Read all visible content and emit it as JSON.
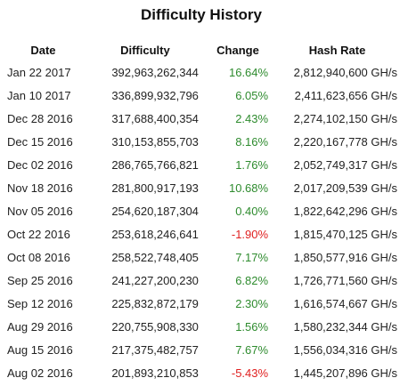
{
  "title": "Difficulty History",
  "colors": {
    "positive": "#2e8b2e",
    "negative": "#e02020"
  },
  "columns": {
    "date": "Date",
    "difficulty": "Difficulty",
    "change": "Change",
    "hash_rate": "Hash Rate"
  },
  "rows": [
    {
      "date": "Jan 22 2017",
      "difficulty": "392,963,262,344",
      "change": "16.64%",
      "hash_rate": "2,812,940,600 GH/s",
      "direction": "up"
    },
    {
      "date": "Jan 10 2017",
      "difficulty": "336,899,932,796",
      "change": "6.05%",
      "hash_rate": "2,411,623,656 GH/s",
      "direction": "up"
    },
    {
      "date": "Dec 28 2016",
      "difficulty": "317,688,400,354",
      "change": "2.43%",
      "hash_rate": "2,274,102,150 GH/s",
      "direction": "up"
    },
    {
      "date": "Dec 15 2016",
      "difficulty": "310,153,855,703",
      "change": "8.16%",
      "hash_rate": "2,220,167,778 GH/s",
      "direction": "up"
    },
    {
      "date": "Dec 02 2016",
      "difficulty": "286,765,766,821",
      "change": "1.76%",
      "hash_rate": "2,052,749,317 GH/s",
      "direction": "up"
    },
    {
      "date": "Nov 18 2016",
      "difficulty": "281,800,917,193",
      "change": "10.68%",
      "hash_rate": "2,017,209,539 GH/s",
      "direction": "up"
    },
    {
      "date": "Nov 05 2016",
      "difficulty": "254,620,187,304",
      "change": "0.40%",
      "hash_rate": "1,822,642,296 GH/s",
      "direction": "up"
    },
    {
      "date": "Oct 22 2016",
      "difficulty": "253,618,246,641",
      "change": "-1.90%",
      "hash_rate": "1,815,470,125 GH/s",
      "direction": "down"
    },
    {
      "date": "Oct 08 2016",
      "difficulty": "258,522,748,405",
      "change": "7.17%",
      "hash_rate": "1,850,577,916 GH/s",
      "direction": "up"
    },
    {
      "date": "Sep 25 2016",
      "difficulty": "241,227,200,230",
      "change": "6.82%",
      "hash_rate": "1,726,771,560 GH/s",
      "direction": "up"
    },
    {
      "date": "Sep 12 2016",
      "difficulty": "225,832,872,179",
      "change": "2.30%",
      "hash_rate": "1,616,574,667 GH/s",
      "direction": "up"
    },
    {
      "date": "Aug 29 2016",
      "difficulty": "220,755,908,330",
      "change": "1.56%",
      "hash_rate": "1,580,232,344 GH/s",
      "direction": "up"
    },
    {
      "date": "Aug 15 2016",
      "difficulty": "217,375,482,757",
      "change": "7.67%",
      "hash_rate": "1,556,034,316 GH/s",
      "direction": "up"
    },
    {
      "date": "Aug 02 2016",
      "difficulty": "201,893,210,853",
      "change": "-5.43%",
      "hash_rate": "1,445,207,896 GH/s",
      "direction": "down"
    }
  ]
}
